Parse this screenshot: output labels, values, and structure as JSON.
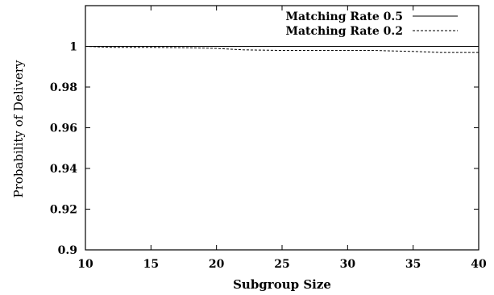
{
  "chart_data": {
    "type": "line",
    "xlabel": "Subgroup Size",
    "ylabel": "Probability of Delivery",
    "xlim": [
      10,
      40
    ],
    "ylim": [
      0.9,
      1.02
    ],
    "xticks": [
      "10",
      "15",
      "20",
      "25",
      "30",
      "35",
      "40"
    ],
    "yticks": [
      "0.9",
      "0.92",
      "0.94",
      "0.96",
      "0.98",
      "1"
    ],
    "grid": false,
    "legend_position": "top-right",
    "series": [
      {
        "name": "Matching Rate 0.5",
        "style": "solid",
        "x": [
          10,
          12,
          15,
          18,
          20,
          22,
          25,
          28,
          30,
          32,
          35,
          38,
          39,
          40
        ],
        "y": [
          1.0,
          1.0,
          1.0,
          1.0,
          1.0,
          1.0,
          1.0,
          1.0,
          1.0,
          1.0,
          1.0,
          1.0,
          1.0,
          1.0
        ]
      },
      {
        "name": "Matching Rate 0.2",
        "style": "dashed",
        "x": [
          10,
          12,
          15,
          18,
          20,
          22,
          25,
          28,
          30,
          32,
          35,
          37,
          40
        ],
        "y": [
          1.0,
          0.9995,
          0.9995,
          0.9993,
          0.999,
          0.9983,
          0.998,
          0.998,
          0.998,
          0.998,
          0.9975,
          0.997,
          0.997
        ]
      }
    ]
  }
}
